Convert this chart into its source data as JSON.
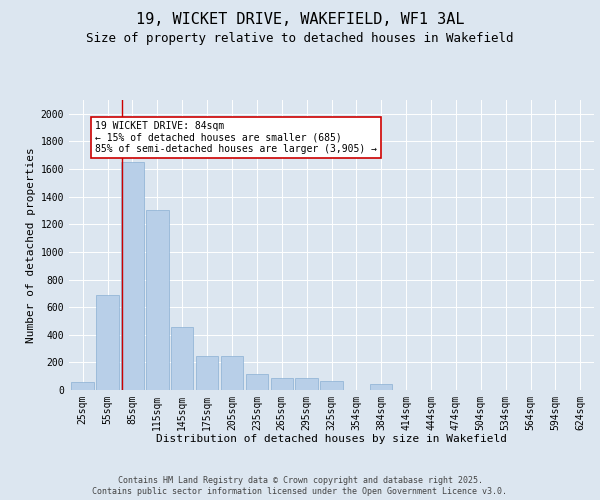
{
  "title": "19, WICKET DRIVE, WAKEFIELD, WF1 3AL",
  "subtitle": "Size of property relative to detached houses in Wakefield",
  "xlabel": "Distribution of detached houses by size in Wakefield",
  "ylabel": "Number of detached properties",
  "categories": [
    "25sqm",
    "55sqm",
    "85sqm",
    "115sqm",
    "145sqm",
    "175sqm",
    "205sqm",
    "235sqm",
    "265sqm",
    "295sqm",
    "325sqm",
    "354sqm",
    "384sqm",
    "414sqm",
    "444sqm",
    "474sqm",
    "504sqm",
    "534sqm",
    "564sqm",
    "594sqm",
    "624sqm"
  ],
  "values": [
    55,
    685,
    1650,
    1300,
    455,
    245,
    245,
    115,
    85,
    85,
    65,
    0,
    45,
    0,
    0,
    0,
    0,
    0,
    0,
    0,
    0
  ],
  "bar_color": "#b8cfe8",
  "bar_edgecolor": "#8ab0d4",
  "vline_color": "#cc0000",
  "vline_xindex": 1.575,
  "annotation_text": "19 WICKET DRIVE: 84sqm\n← 15% of detached houses are smaller (685)\n85% of semi-detached houses are larger (3,905) →",
  "annotation_box_edgecolor": "#cc0000",
  "annotation_box_facecolor": "#ffffff",
  "ylim": [
    0,
    2100
  ],
  "yticks": [
    0,
    200,
    400,
    600,
    800,
    1000,
    1200,
    1400,
    1600,
    1800,
    2000
  ],
  "bg_color": "#dce6f0",
  "plot_bg_color": "#dce6f0",
  "footer_line1": "Contains HM Land Registry data © Crown copyright and database right 2025.",
  "footer_line2": "Contains public sector information licensed under the Open Government Licence v3.0.",
  "title_fontsize": 11,
  "subtitle_fontsize": 9,
  "axis_label_fontsize": 8,
  "tick_fontsize": 7,
  "annotation_fontsize": 7,
  "footer_fontsize": 6
}
